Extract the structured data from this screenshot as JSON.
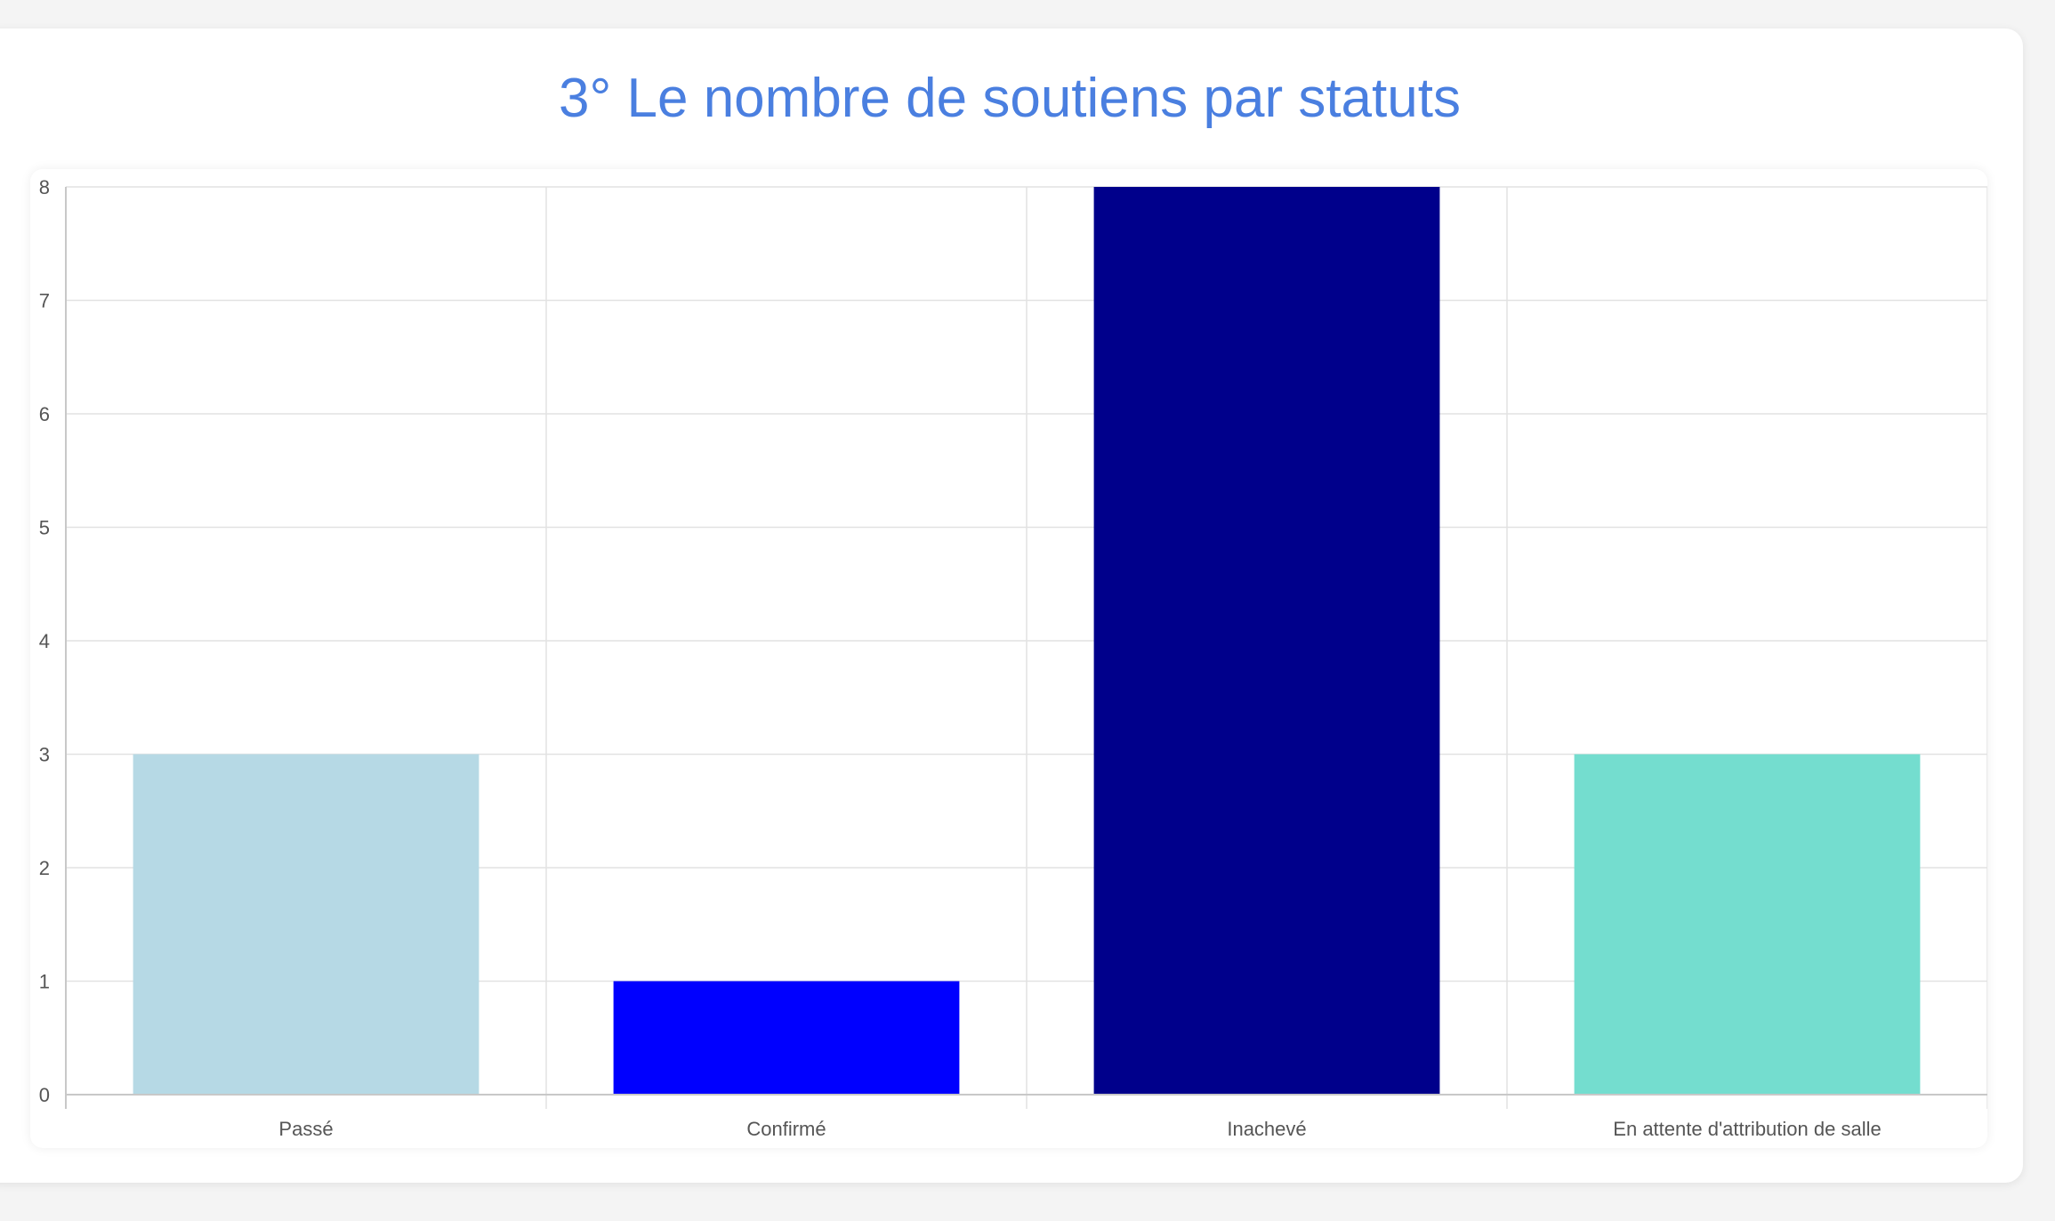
{
  "title": "3° Le nombre de soutiens par statuts",
  "chart_data": {
    "type": "bar",
    "title": "3° Le nombre de soutiens par statuts",
    "xlabel": "",
    "ylabel": "",
    "categories": [
      "Passé",
      "Confirmé",
      "Inachevé",
      "En attente d'attribution de salle"
    ],
    "values": [
      3,
      1,
      8,
      3
    ],
    "colors": [
      "#b6d9e5",
      "#0000ff",
      "#00008b",
      "#74ddcf"
    ],
    "ylim": [
      0,
      8
    ],
    "yticks": [
      "0",
      "1",
      "2",
      "3",
      "4",
      "5",
      "6",
      "7",
      "8"
    ],
    "grid": true,
    "legend": "none"
  }
}
